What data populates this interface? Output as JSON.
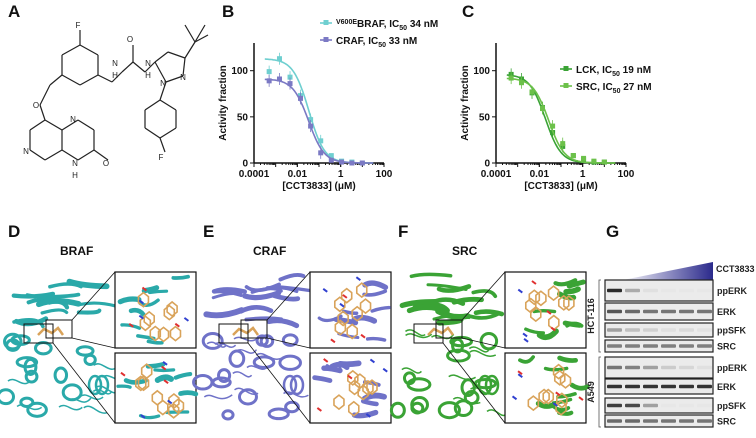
{
  "panels": {
    "A": "A",
    "B": "B",
    "C": "C",
    "D": "D",
    "E": "E",
    "F": "F",
    "G": "G"
  },
  "structure": {
    "atoms": {
      "F1": "F",
      "O_ether": "O",
      "N1": "N",
      "N2": "N",
      "NH1": "H",
      "NH2": "H",
      "N3": "N",
      "N4": "N",
      "O_urea": "O",
      "O_ketone": "O",
      "NH_ring": "N",
      "H_ring": "H",
      "F2": "F"
    }
  },
  "chart_data": [
    {
      "type": "line",
      "panel": "B",
      "xlabel": "[CCT3833] (μM)",
      "ylabel": "Activity fraction",
      "xscale": "log",
      "xlim": [
        0.0001,
        100
      ],
      "ylim": [
        0,
        130
      ],
      "xticks": [
        "0.0001",
        "0.01",
        "1",
        "100"
      ],
      "yticks": [
        "0",
        "50",
        "100"
      ],
      "legend_position": "top-right",
      "x": [
        0.0005,
        0.0015,
        0.0046,
        0.014,
        0.041,
        0.12,
        0.37,
        1.1,
        3.3,
        10
      ],
      "series": [
        {
          "name_prefix": "V600E",
          "name": "BRAF, IC",
          "ic_sub": "50",
          "ic_value": " 34 nM",
          "color": "#6fcfd0",
          "marker": "square",
          "values": [
            99,
            113,
            93,
            73,
            47,
            24,
            8,
            2,
            1,
            0
          ],
          "ic50_uM": 0.034
        },
        {
          "name_prefix": "",
          "name": "CRAF, IC",
          "ic_sub": "50",
          "ic_value": " 33 nM",
          "color": "#7b79c4",
          "marker": "square",
          "values": [
            89,
            91,
            86,
            70,
            40,
            11,
            3,
            1,
            0,
            0
          ],
          "ic50_uM": 0.033
        }
      ]
    },
    {
      "type": "line",
      "panel": "C",
      "xlabel": "[CCT3833] (μM)",
      "ylabel": "Activity fraction",
      "xscale": "log",
      "xlim": [
        0.0001,
        100
      ],
      "ylim": [
        0,
        130
      ],
      "xticks": [
        "0.0001",
        "0.01",
        "1",
        "100"
      ],
      "yticks": [
        "0",
        "50",
        "100"
      ],
      "legend_position": "top-right",
      "x": [
        0.0005,
        0.0015,
        0.0046,
        0.014,
        0.041,
        0.12,
        0.37,
        1.1,
        3.3,
        10
      ],
      "series": [
        {
          "name_prefix": "",
          "name": "LCK, IC",
          "ic_sub": "50",
          "ic_value": " 19 nM",
          "color": "#3aa335",
          "marker": "square",
          "values": [
            96,
            91,
            76,
            60,
            33,
            18,
            8,
            4,
            1,
            1
          ],
          "ic50_uM": 0.019
        },
        {
          "name_prefix": "",
          "name": "SRC, IC",
          "ic_sub": "50",
          "ic_value": " 27 nM",
          "color": "#6cc14a",
          "marker": "square",
          "values": [
            92,
            87,
            77,
            59,
            40,
            21,
            8,
            5,
            2,
            1
          ],
          "ic50_uM": 0.027
        }
      ]
    }
  ],
  "structures": [
    {
      "title": "BRAF",
      "color": "#2aa9a9"
    },
    {
      "title": "CRAF",
      "color": "#6f72c8"
    },
    {
      "title": "SRC",
      "color": "#3aa335"
    }
  ],
  "western": {
    "treatment": "CCT3833",
    "gradient_color": "#2b2a8c",
    "cell_lines": [
      {
        "name": "HCT-116",
        "rows": [
          {
            "label": "ppERK",
            "intensity": [
              0.9,
              0.3,
              0.05,
              0.02,
              0.02,
              0.02
            ]
          },
          {
            "label": "ERK",
            "intensity": [
              0.7,
              0.6,
              0.55,
              0.55,
              0.55,
              0.55
            ]
          },
          {
            "label": "ppSFK",
            "intensity": [
              0.35,
              0.2,
              0.12,
              0.05,
              0.08,
              0.04
            ]
          },
          {
            "label": "SRC",
            "intensity": [
              0.5,
              0.5,
              0.5,
              0.5,
              0.5,
              0.5
            ]
          }
        ]
      },
      {
        "name": "A549",
        "rows": [
          {
            "label": "ppERK",
            "intensity": [
              0.55,
              0.5,
              0.35,
              0.15,
              0.1,
              0.05
            ]
          },
          {
            "label": "ERK",
            "intensity": [
              0.85,
              0.85,
              0.85,
              0.85,
              0.85,
              0.85
            ]
          },
          {
            "label": "ppSFK",
            "intensity": [
              0.8,
              0.75,
              0.35,
              0.02,
              0.02,
              0.02
            ]
          },
          {
            "label": "SRC",
            "intensity": [
              0.6,
              0.6,
              0.55,
              0.55,
              0.55,
              0.55
            ]
          }
        ]
      }
    ]
  }
}
